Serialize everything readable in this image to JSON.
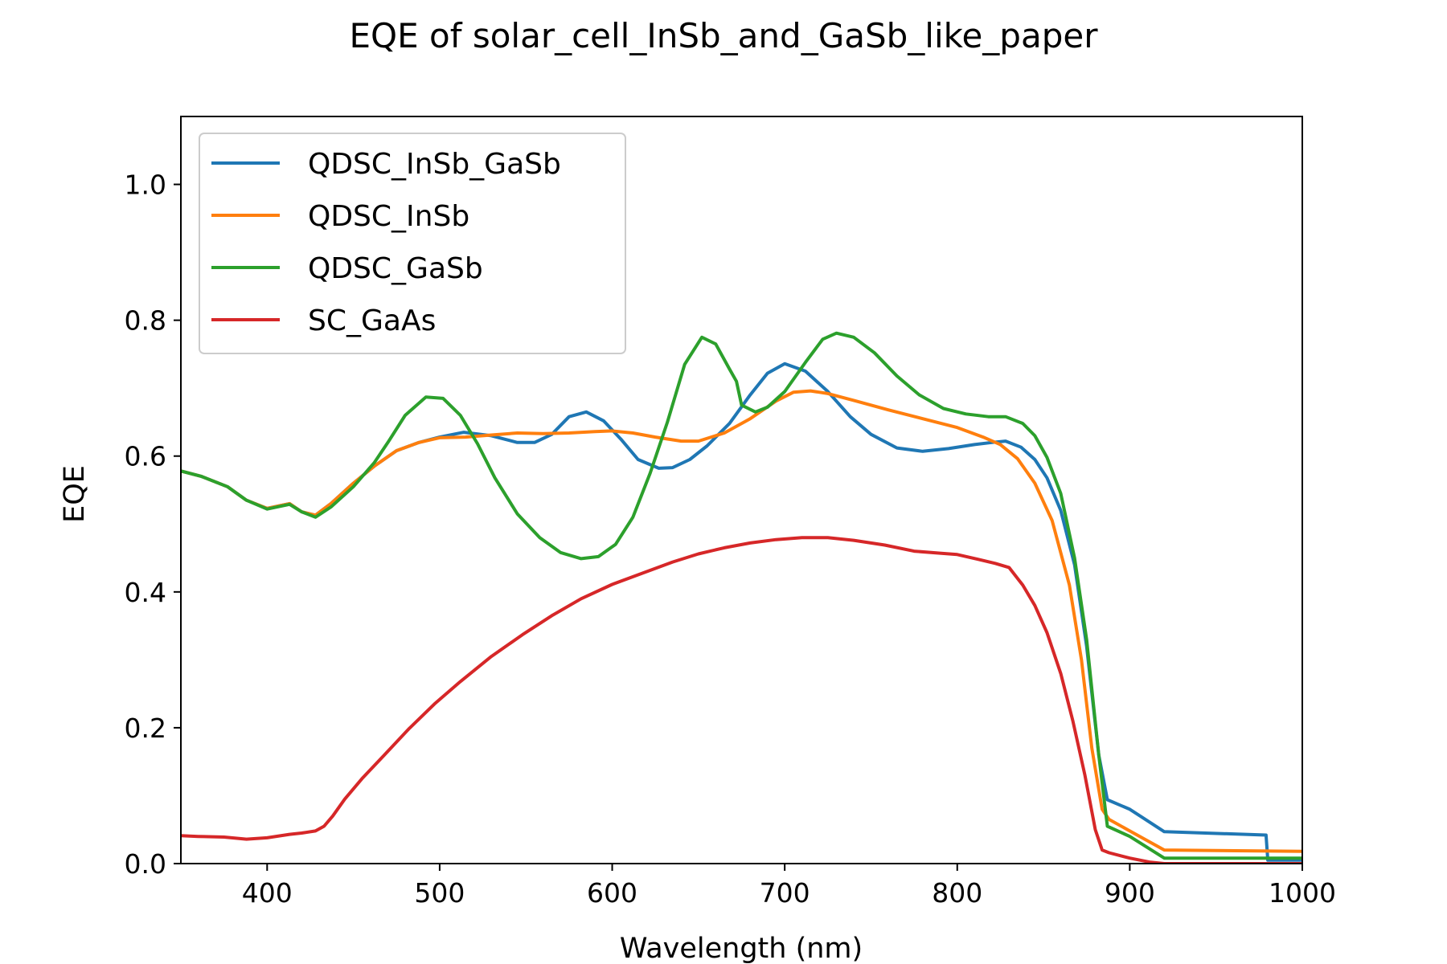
{
  "chart_data": {
    "type": "line",
    "title": "EQE of  solar_cell_InSb_and_GaSb_like_paper",
    "xlabel": "Wavelength (nm)",
    "ylabel": "EQE",
    "xlim": [
      350,
      1000
    ],
    "ylim": [
      0.0,
      1.1
    ],
    "xticks": [
      400,
      500,
      600,
      700,
      800,
      900,
      1000
    ],
    "yticks": [
      0.0,
      0.2,
      0.4,
      0.6,
      0.8,
      1.0
    ],
    "xtick_labels": [
      "400",
      "500",
      "600",
      "700",
      "800",
      "900",
      "1000"
    ],
    "ytick_labels": [
      "0.0",
      "0.2",
      "0.4",
      "0.6",
      "0.8",
      "1.0"
    ],
    "grid": false,
    "legend_position": "top-left",
    "series": [
      {
        "name": "QDSC_InSb_GaSb",
        "color": "#1f77b4",
        "points": [
          [
            350,
            0.578
          ],
          [
            362,
            0.57
          ],
          [
            377,
            0.555
          ],
          [
            388,
            0.535
          ],
          [
            400,
            0.523
          ],
          [
            413,
            0.53
          ],
          [
            420,
            0.518
          ],
          [
            428,
            0.513
          ],
          [
            437,
            0.53
          ],
          [
            450,
            0.56
          ],
          [
            462,
            0.585
          ],
          [
            475,
            0.608
          ],
          [
            488,
            0.62
          ],
          [
            500,
            0.628
          ],
          [
            514,
            0.635
          ],
          [
            530,
            0.63
          ],
          [
            545,
            0.62
          ],
          [
            555,
            0.62
          ],
          [
            565,
            0.632
          ],
          [
            575,
            0.658
          ],
          [
            585,
            0.665
          ],
          [
            595,
            0.652
          ],
          [
            605,
            0.625
          ],
          [
            615,
            0.595
          ],
          [
            627,
            0.582
          ],
          [
            635,
            0.583
          ],
          [
            645,
            0.595
          ],
          [
            655,
            0.615
          ],
          [
            668,
            0.648
          ],
          [
            680,
            0.69
          ],
          [
            690,
            0.722
          ],
          [
            700,
            0.736
          ],
          [
            712,
            0.725
          ],
          [
            725,
            0.695
          ],
          [
            738,
            0.658
          ],
          [
            750,
            0.632
          ],
          [
            765,
            0.612
          ],
          [
            780,
            0.607
          ],
          [
            795,
            0.611
          ],
          [
            810,
            0.617
          ],
          [
            820,
            0.62
          ],
          [
            828,
            0.622
          ],
          [
            837,
            0.613
          ],
          [
            845,
            0.595
          ],
          [
            852,
            0.568
          ],
          [
            860,
            0.52
          ],
          [
            868,
            0.44
          ],
          [
            875,
            0.32
          ],
          [
            882,
            0.16
          ],
          [
            887,
            0.094
          ],
          [
            900,
            0.08
          ],
          [
            920,
            0.047
          ],
          [
            979,
            0.042
          ],
          [
            980,
            0.005
          ],
          [
            1000,
            0.005
          ]
        ]
      },
      {
        "name": "QDSC_InSb",
        "color": "#ff7f0e",
        "points": [
          [
            350,
            0.578
          ],
          [
            362,
            0.57
          ],
          [
            377,
            0.555
          ],
          [
            388,
            0.535
          ],
          [
            400,
            0.523
          ],
          [
            413,
            0.53
          ],
          [
            420,
            0.518
          ],
          [
            428,
            0.513
          ],
          [
            437,
            0.53
          ],
          [
            450,
            0.56
          ],
          [
            462,
            0.585
          ],
          [
            475,
            0.608
          ],
          [
            488,
            0.62
          ],
          [
            500,
            0.627
          ],
          [
            515,
            0.628
          ],
          [
            530,
            0.631
          ],
          [
            545,
            0.634
          ],
          [
            560,
            0.633
          ],
          [
            575,
            0.634
          ],
          [
            590,
            0.636
          ],
          [
            600,
            0.637
          ],
          [
            612,
            0.634
          ],
          [
            625,
            0.628
          ],
          [
            640,
            0.622
          ],
          [
            650,
            0.622
          ],
          [
            665,
            0.634
          ],
          [
            680,
            0.655
          ],
          [
            695,
            0.681
          ],
          [
            705,
            0.694
          ],
          [
            715,
            0.696
          ],
          [
            725,
            0.692
          ],
          [
            740,
            0.682
          ],
          [
            760,
            0.668
          ],
          [
            780,
            0.655
          ],
          [
            800,
            0.642
          ],
          [
            815,
            0.628
          ],
          [
            825,
            0.617
          ],
          [
            835,
            0.596
          ],
          [
            845,
            0.56
          ],
          [
            855,
            0.505
          ],
          [
            865,
            0.41
          ],
          [
            872,
            0.3
          ],
          [
            878,
            0.17
          ],
          [
            884,
            0.08
          ],
          [
            888,
            0.065
          ],
          [
            900,
            0.048
          ],
          [
            920,
            0.02
          ],
          [
            1000,
            0.018
          ]
        ]
      },
      {
        "name": "QDSC_GaSb",
        "color": "#2ca02c",
        "points": [
          [
            350,
            0.578
          ],
          [
            362,
            0.57
          ],
          [
            377,
            0.555
          ],
          [
            388,
            0.535
          ],
          [
            400,
            0.522
          ],
          [
            413,
            0.529
          ],
          [
            420,
            0.518
          ],
          [
            428,
            0.51
          ],
          [
            437,
            0.525
          ],
          [
            450,
            0.555
          ],
          [
            462,
            0.59
          ],
          [
            470,
            0.62
          ],
          [
            480,
            0.66
          ],
          [
            492,
            0.687
          ],
          [
            502,
            0.685
          ],
          [
            512,
            0.66
          ],
          [
            522,
            0.618
          ],
          [
            532,
            0.568
          ],
          [
            545,
            0.515
          ],
          [
            558,
            0.48
          ],
          [
            570,
            0.458
          ],
          [
            582,
            0.449
          ],
          [
            592,
            0.452
          ],
          [
            602,
            0.47
          ],
          [
            612,
            0.51
          ],
          [
            622,
            0.575
          ],
          [
            632,
            0.65
          ],
          [
            642,
            0.735
          ],
          [
            652,
            0.775
          ],
          [
            660,
            0.765
          ],
          [
            668,
            0.728
          ],
          [
            672,
            0.71
          ],
          [
            675,
            0.675
          ],
          [
            683,
            0.665
          ],
          [
            690,
            0.672
          ],
          [
            700,
            0.695
          ],
          [
            712,
            0.738
          ],
          [
            722,
            0.772
          ],
          [
            730,
            0.781
          ],
          [
            740,
            0.775
          ],
          [
            752,
            0.752
          ],
          [
            765,
            0.718
          ],
          [
            778,
            0.69
          ],
          [
            792,
            0.67
          ],
          [
            805,
            0.662
          ],
          [
            818,
            0.658
          ],
          [
            828,
            0.658
          ],
          [
            838,
            0.648
          ],
          [
            845,
            0.63
          ],
          [
            852,
            0.598
          ],
          [
            860,
            0.545
          ],
          [
            868,
            0.45
          ],
          [
            875,
            0.33
          ],
          [
            882,
            0.16
          ],
          [
            887,
            0.055
          ],
          [
            900,
            0.04
          ],
          [
            920,
            0.008
          ],
          [
            1000,
            0.008
          ]
        ]
      },
      {
        "name": "SC_GaAs",
        "color": "#d62728",
        "points": [
          [
            350,
            0.041
          ],
          [
            360,
            0.04
          ],
          [
            375,
            0.039
          ],
          [
            388,
            0.036
          ],
          [
            400,
            0.038
          ],
          [
            413,
            0.043
          ],
          [
            420,
            0.045
          ],
          [
            428,
            0.048
          ],
          [
            433,
            0.055
          ],
          [
            438,
            0.07
          ],
          [
            445,
            0.095
          ],
          [
            455,
            0.125
          ],
          [
            468,
            0.16
          ],
          [
            482,
            0.198
          ],
          [
            497,
            0.235
          ],
          [
            512,
            0.268
          ],
          [
            530,
            0.305
          ],
          [
            548,
            0.337
          ],
          [
            565,
            0.365
          ],
          [
            582,
            0.39
          ],
          [
            600,
            0.411
          ],
          [
            618,
            0.428
          ],
          [
            635,
            0.444
          ],
          [
            650,
            0.456
          ],
          [
            665,
            0.465
          ],
          [
            680,
            0.472
          ],
          [
            695,
            0.477
          ],
          [
            710,
            0.48
          ],
          [
            725,
            0.48
          ],
          [
            740,
            0.476
          ],
          [
            758,
            0.469
          ],
          [
            775,
            0.46
          ],
          [
            790,
            0.457
          ],
          [
            800,
            0.455
          ],
          [
            812,
            0.448
          ],
          [
            822,
            0.442
          ],
          [
            830,
            0.436
          ],
          [
            838,
            0.41
          ],
          [
            845,
            0.38
          ],
          [
            852,
            0.34
          ],
          [
            860,
            0.28
          ],
          [
            867,
            0.21
          ],
          [
            874,
            0.13
          ],
          [
            880,
            0.05
          ],
          [
            884,
            0.02
          ],
          [
            888,
            0.016
          ],
          [
            900,
            0.008
          ],
          [
            912,
            0.002
          ],
          [
            920,
            0.0
          ],
          [
            1000,
            0.0
          ]
        ]
      }
    ]
  }
}
